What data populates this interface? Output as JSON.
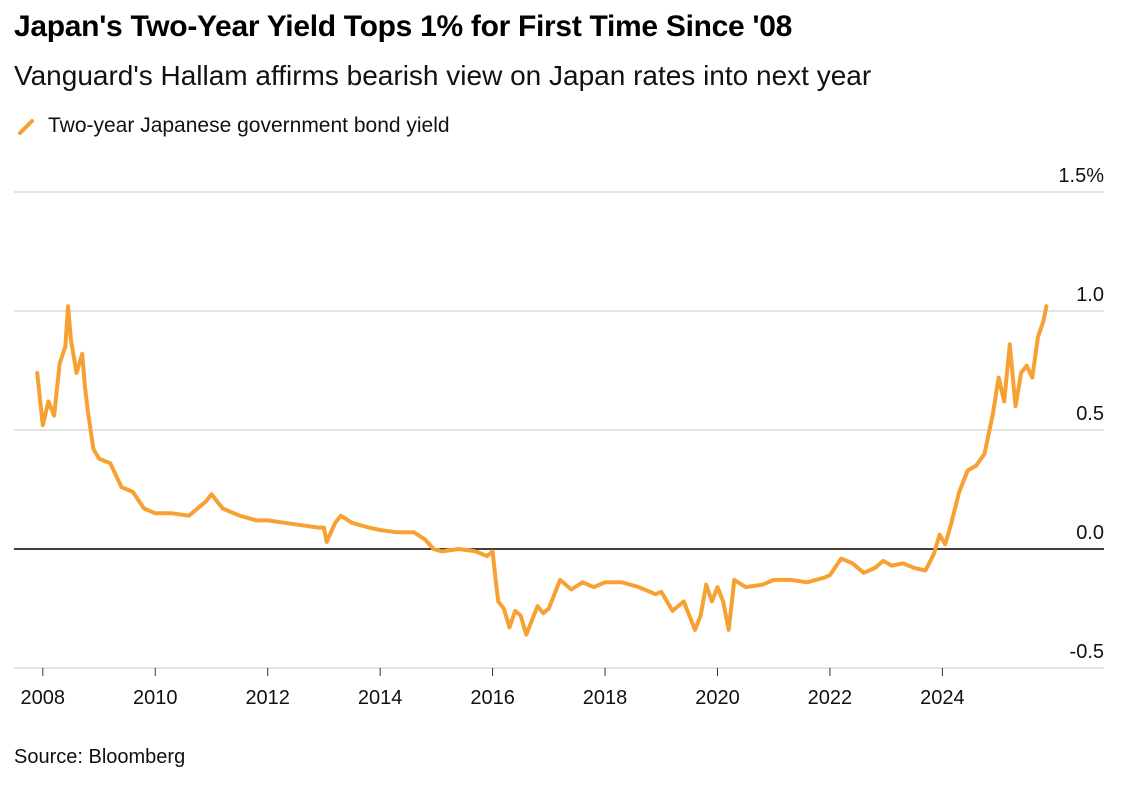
{
  "title": "Japan's Two-Year Yield Tops 1% for First Time Since '08",
  "subtitle": "Vanguard's Hallam affirms bearish view on Japan rates into next year",
  "legend_label": "Two-year Japanese government bond yield",
  "source": "Source: Bloomberg",
  "colors": {
    "series": "#f7a132",
    "grid": "#d4d4d4",
    "zero_line": "#000000"
  },
  "chart_data": {
    "type": "line",
    "title": "Japan's Two-Year Yield Tops 1% for First Time Since '08",
    "subtitle": "Vanguard's Hallam affirms bearish view on Japan rates into next year",
    "xlabel": "",
    "ylabel": "",
    "xlim": [
      2007.95,
      2025.95
    ],
    "ylim": [
      -0.5,
      1.5
    ],
    "grid": true,
    "legend_position": "top-left",
    "x_ticks": [
      "2008",
      "2010",
      "2012",
      "2014",
      "2016",
      "2018",
      "2020",
      "2022",
      "2024"
    ],
    "y_ticks": [
      {
        "value": 1.5,
        "label": "1.5%"
      },
      {
        "value": 1.0,
        "label": "1.0"
      },
      {
        "value": 0.5,
        "label": "0.5"
      },
      {
        "value": 0.0,
        "label": "0.0"
      },
      {
        "value": -0.5,
        "label": "-0.5"
      }
    ],
    "series": [
      {
        "name": "Two-year Japanese government bond yield",
        "x": [
          2007.9,
          2008.0,
          2008.1,
          2008.2,
          2008.3,
          2008.4,
          2008.45,
          2008.5,
          2008.6,
          2008.7,
          2008.75,
          2008.8,
          2008.9,
          2009.0,
          2009.2,
          2009.4,
          2009.6,
          2009.8,
          2010.0,
          2010.3,
          2010.6,
          2010.9,
          2011.0,
          2011.2,
          2011.5,
          2011.8,
          2012.0,
          2012.3,
          2012.6,
          2012.9,
          2013.0,
          2013.05,
          2013.2,
          2013.3,
          2013.5,
          2013.8,
          2014.0,
          2014.3,
          2014.6,
          2014.8,
          2014.95,
          2015.1,
          2015.4,
          2015.7,
          2015.9,
          2016.0,
          2016.05,
          2016.1,
          2016.2,
          2016.3,
          2016.4,
          2016.5,
          2016.6,
          2016.7,
          2016.8,
          2016.9,
          2017.0,
          2017.2,
          2017.4,
          2017.6,
          2017.8,
          2018.0,
          2018.3,
          2018.6,
          2018.9,
          2019.0,
          2019.2,
          2019.4,
          2019.6,
          2019.7,
          2019.8,
          2019.9,
          2020.0,
          2020.1,
          2020.2,
          2020.3,
          2020.5,
          2020.8,
          2021.0,
          2021.3,
          2021.6,
          2021.9,
          2022.0,
          2022.2,
          2022.4,
          2022.6,
          2022.8,
          2022.95,
          2023.1,
          2023.3,
          2023.5,
          2023.7,
          2023.85,
          2023.95,
          2024.05,
          2024.15,
          2024.3,
          2024.45,
          2024.6,
          2024.75,
          2024.9,
          2025.0,
          2025.1,
          2025.2,
          2025.3,
          2025.4,
          2025.5,
          2025.6,
          2025.7,
          2025.8,
          2025.85
        ],
        "values": [
          0.74,
          0.52,
          0.62,
          0.56,
          0.78,
          0.85,
          1.02,
          0.88,
          0.74,
          0.82,
          0.68,
          0.58,
          0.42,
          0.38,
          0.36,
          0.26,
          0.24,
          0.17,
          0.15,
          0.15,
          0.14,
          0.2,
          0.23,
          0.17,
          0.14,
          0.12,
          0.12,
          0.11,
          0.1,
          0.09,
          0.09,
          0.03,
          0.11,
          0.14,
          0.11,
          0.09,
          0.08,
          0.07,
          0.07,
          0.04,
          0.0,
          -0.01,
          0.0,
          -0.01,
          -0.03,
          -0.01,
          -0.12,
          -0.22,
          -0.25,
          -0.33,
          -0.26,
          -0.28,
          -0.36,
          -0.3,
          -0.24,
          -0.27,
          -0.25,
          -0.13,
          -0.17,
          -0.14,
          -0.16,
          -0.14,
          -0.14,
          -0.16,
          -0.19,
          -0.18,
          -0.26,
          -0.22,
          -0.34,
          -0.28,
          -0.15,
          -0.22,
          -0.16,
          -0.22,
          -0.34,
          -0.13,
          -0.16,
          -0.15,
          -0.13,
          -0.13,
          -0.14,
          -0.12,
          -0.11,
          -0.04,
          -0.06,
          -0.1,
          -0.08,
          -0.05,
          -0.07,
          -0.06,
          -0.08,
          -0.09,
          -0.02,
          0.06,
          0.02,
          0.1,
          0.24,
          0.33,
          0.35,
          0.4,
          0.57,
          0.72,
          0.62,
          0.86,
          0.6,
          0.74,
          0.77,
          0.72,
          0.89,
          0.96,
          1.02
        ]
      }
    ]
  }
}
